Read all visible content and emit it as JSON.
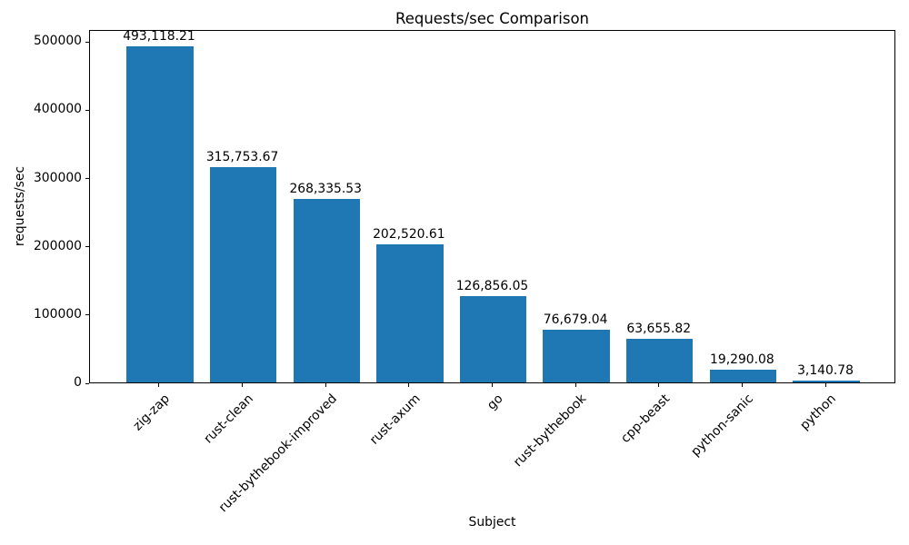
{
  "chart_data": {
    "type": "bar",
    "title": "Requests/sec Comparison",
    "xlabel": "Subject",
    "ylabel": "requests/sec",
    "categories": [
      "zig-zap",
      "rust-clean",
      "rust-bythebook-improved",
      "rust-axum",
      "go",
      "rust-bythebook",
      "cpp-beast",
      "python-sanic",
      "python"
    ],
    "values": [
      493118.21,
      315753.67,
      268335.53,
      202520.61,
      126856.05,
      76679.04,
      63655.82,
      19290.08,
      3140.78
    ],
    "bar_labels": [
      "493,118.21",
      "315,753.67",
      "268,335.53",
      "202,520.61",
      "126,856.05",
      "76,679.04",
      "63,655.82",
      "19,290.08",
      "3,140.78"
    ],
    "yticks": [
      0,
      100000,
      200000,
      300000,
      400000,
      500000
    ],
    "ytick_labels": [
      "0",
      "100000",
      "200000",
      "300000",
      "400000",
      "500000"
    ],
    "ylim": [
      0,
      517774
    ],
    "bar_color": "#1f77b4",
    "grid": false,
    "legend": null,
    "xtick_rotation_deg": 45
  }
}
